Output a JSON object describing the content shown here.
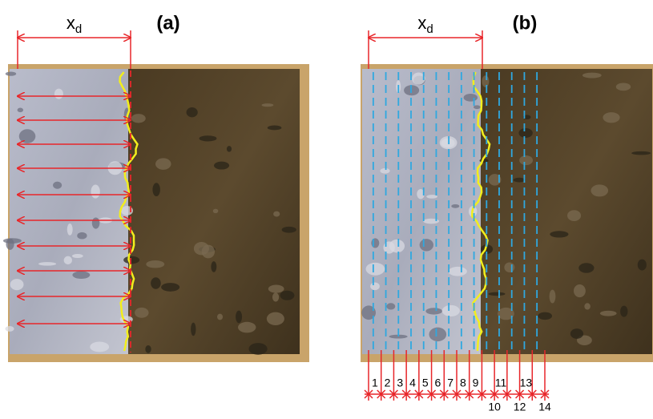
{
  "panels": [
    {
      "label": "(a)",
      "dimension": {
        "base": "x",
        "subscript": "d"
      }
    },
    {
      "label": "(b)",
      "dimension": {
        "base": "x",
        "subscript": "d"
      },
      "slices": [
        1,
        2,
        3,
        4,
        5,
        6,
        7,
        8,
        9,
        10,
        11,
        12,
        13,
        14
      ]
    }
  ]
}
